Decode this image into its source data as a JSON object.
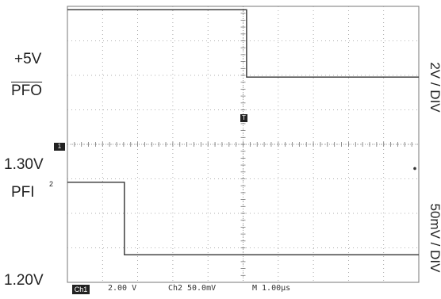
{
  "chart_data": {
    "type": "line",
    "title": "",
    "grid": true,
    "divisions": {
      "x": 10,
      "y": 8
    },
    "traces": [
      {
        "name": "PFO",
        "channel_marker": "1",
        "levels": {
          "high": "+5V"
        },
        "scale_label": "2V / DIV",
        "x_div": [
          0,
          5.1,
          5.1,
          10
        ],
        "y_div": [
          3.9,
          3.9,
          1.95,
          1.95
        ]
      },
      {
        "name": "PFI",
        "channel_marker": "2",
        "levels": {
          "high": "1.30V",
          "low": "1.20V"
        },
        "scale_label": "50mV / DIV",
        "x_div": [
          0,
          1.62,
          1.62,
          10
        ],
        "y_div": [
          -1.1,
          -1.1,
          -3.2,
          -3.2
        ]
      }
    ],
    "trigger_marker": "T",
    "status_bar": {
      "channel": "Ch1",
      "ch1_scale": "2.00 V",
      "ch2": "Ch2",
      "ch2_scale": "50.0mV",
      "timebase": "M 1.00µs"
    }
  }
}
